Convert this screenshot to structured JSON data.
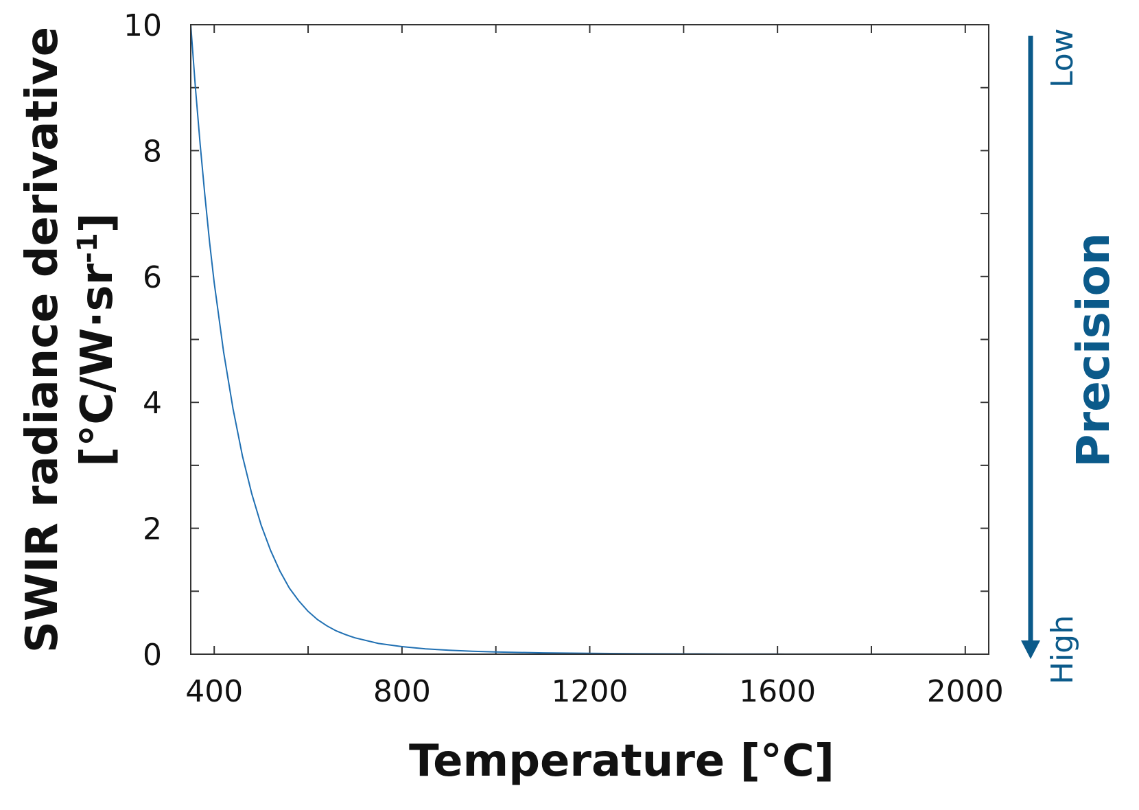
{
  "chart_data": {
    "type": "line",
    "xlabel": "Temperature [°C]",
    "ylabel_line1": "SWIR radiance derivative",
    "ylabel_line2_base": "[°C/W·sr",
    "ylabel_line2_sup": "-1",
    "ylabel_line2_end": "]",
    "xlim": [
      350,
      2050
    ],
    "ylim": [
      0,
      10
    ],
    "x_ticks": [
      400,
      600,
      800,
      1000,
      1200,
      1400,
      1600,
      1800,
      2000
    ],
    "x_tick_labels": [
      "400",
      "800",
      "1200",
      "1600",
      "2000"
    ],
    "x_tick_label_values": [
      400,
      800,
      1200,
      1600,
      2000
    ],
    "y_ticks": [
      0,
      1,
      2,
      3,
      4,
      5,
      6,
      7,
      8,
      9,
      10
    ],
    "y_tick_labels": [
      "0",
      "2",
      "4",
      "6",
      "8",
      "10"
    ],
    "y_tick_label_values": [
      0,
      2,
      4,
      6,
      8,
      10
    ],
    "grid": false,
    "series": [
      {
        "color": "#1f6fb2",
        "x": [
          350,
          360,
          370,
          380,
          390,
          400,
          420,
          440,
          460,
          480,
          500,
          520,
          540,
          560,
          580,
          600,
          620,
          640,
          660,
          680,
          700,
          750,
          800,
          850,
          900,
          950,
          1000,
          1100,
          1200,
          1300,
          1400,
          1500,
          1600,
          1700,
          1800,
          1900,
          2000,
          2050
        ],
        "y": [
          10.0,
          9.0,
          8.1,
          7.3,
          6.55,
          5.9,
          4.8,
          3.9,
          3.15,
          2.55,
          2.05,
          1.65,
          1.32,
          1.05,
          0.85,
          0.68,
          0.55,
          0.45,
          0.37,
          0.31,
          0.26,
          0.17,
          0.12,
          0.085,
          0.062,
          0.046,
          0.035,
          0.021,
          0.013,
          0.008,
          0.005,
          0.003,
          0.002,
          0.0015,
          0.001,
          0.0007,
          0.0005,
          0.0004
        ]
      }
    ]
  },
  "precision": {
    "title": "Precision",
    "low_label": "Low",
    "high_label": "High",
    "color": "#0b5a8a"
  }
}
